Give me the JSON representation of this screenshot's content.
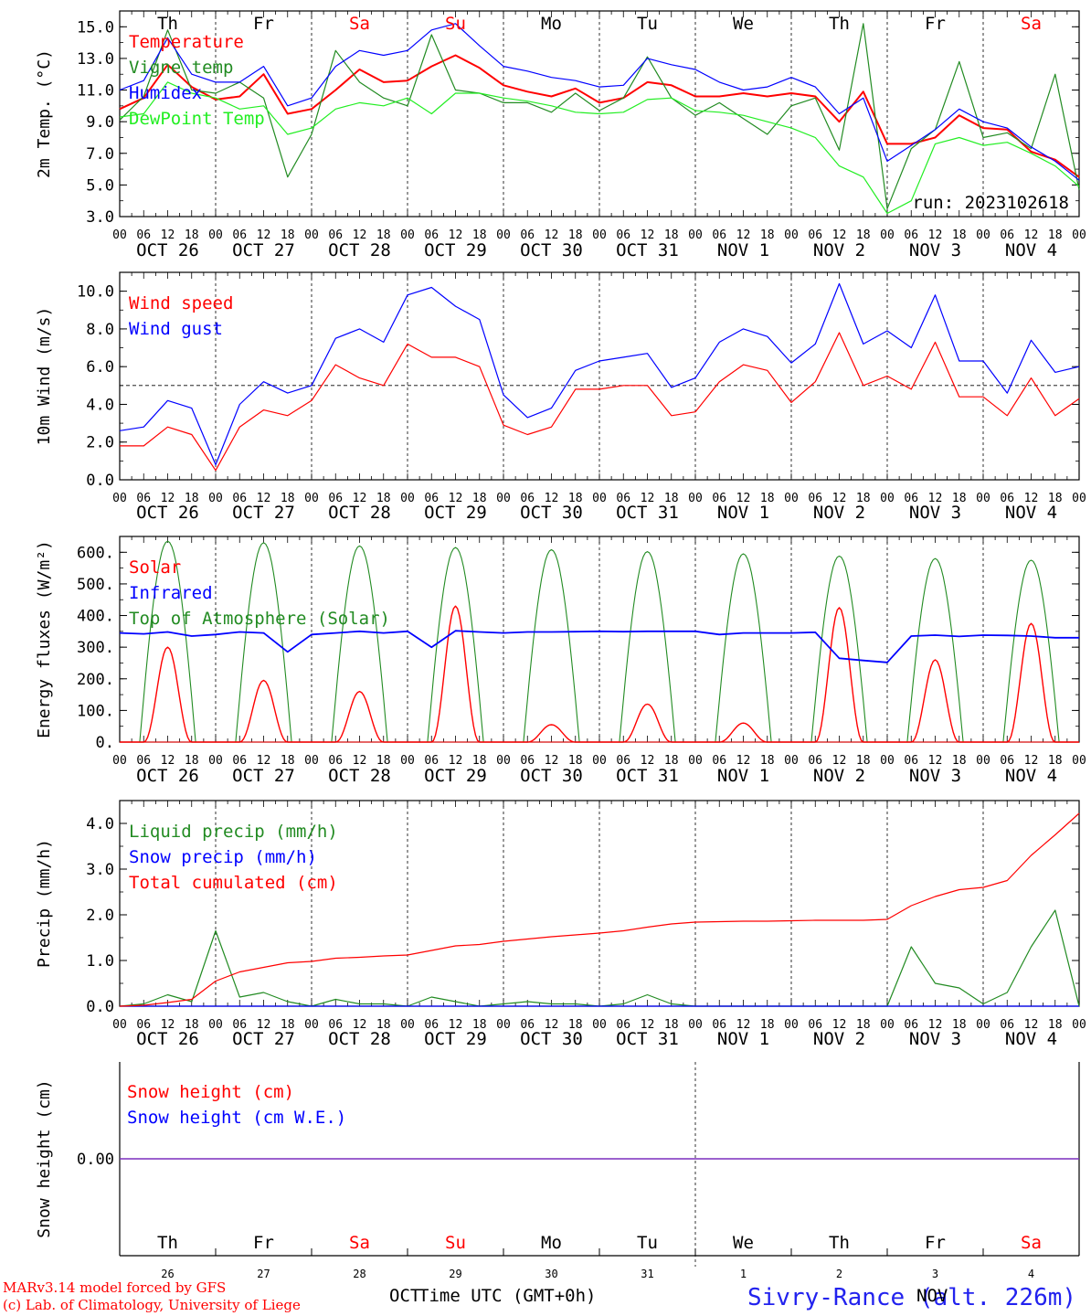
{
  "colors": {
    "red": "#ff0000",
    "blue": "#0000ff",
    "darkgreen": "#228b22",
    "lightgreen": "#22ee22",
    "purple": "#7b2fbe",
    "axis": "#000000"
  },
  "time": {
    "x_labels": [
      "00",
      "06",
      "12",
      "18"
    ],
    "days": [
      "OCT 26",
      "OCT 27",
      "OCT 28",
      "OCT 29",
      "OCT 30",
      "OCT 31",
      "NOV  1",
      "NOV  2",
      "NOV  3",
      "NOV  4"
    ],
    "weekdays": [
      "Th",
      "Fr",
      "Sa",
      "Su",
      "Mo",
      "Tu",
      "We",
      "Th",
      "Fr",
      "Sa"
    ],
    "weekday_colors": [
      "#000000",
      "#000000",
      "#ff0000",
      "#ff0000",
      "#000000",
      "#000000",
      "#000000",
      "#000000",
      "#000000",
      "#ff0000"
    ],
    "day_numbers": [
      "26",
      "27",
      "28",
      "29",
      "30",
      "31",
      "1",
      "2",
      "3",
      "4"
    ],
    "month_left": "OCT",
    "month_right": "NOV"
  },
  "footer": {
    "model": "MARv3.14 model forced by GFS",
    "credit": "(c) Lab. of Climatology, University of Liege",
    "xlabel": "Time UTC (GMT+0h)",
    "station": "Sivry-Rance (alt. 226m)"
  },
  "chart_data": [
    {
      "type": "line",
      "ylabel": "2m Temp. (°C)",
      "ylim": [
        3.0,
        16.0
      ],
      "yticks": [
        "3.0",
        "5.0",
        "7.0",
        "9.0",
        "11.0",
        "13.0",
        "15.0"
      ],
      "annotation": "run: 2023102618",
      "x_hours": [
        0,
        6,
        12,
        18,
        24,
        30,
        36,
        42,
        48,
        54,
        60,
        66,
        72,
        78,
        84,
        90,
        96,
        102,
        108,
        114,
        120,
        126,
        132,
        138,
        144,
        150,
        156,
        162,
        168,
        174,
        180,
        186,
        192,
        198,
        204,
        210,
        216,
        222,
        228,
        234,
        240
      ],
      "series": [
        {
          "name": "Temperature",
          "color": "#ff0000",
          "values": [
            9.8,
            10.5,
            12.6,
            11.2,
            10.4,
            10.6,
            12.0,
            9.5,
            9.8,
            11.0,
            12.3,
            11.5,
            11.6,
            12.5,
            13.2,
            12.4,
            11.3,
            10.9,
            10.6,
            11.1,
            10.2,
            10.5,
            11.5,
            11.3,
            10.6,
            10.6,
            10.8,
            10.6,
            10.8,
            10.6,
            9.0,
            10.9,
            7.6,
            7.6,
            8.0,
            9.4,
            8.6,
            8.5,
            7.1,
            6.6,
            5.5
          ]
        },
        {
          "name": "Vigne temp",
          "color": "#228b22",
          "values": [
            9.1,
            10.6,
            14.8,
            11.0,
            10.8,
            11.5,
            10.5,
            5.5,
            8.2,
            13.5,
            11.5,
            10.5,
            10.0,
            14.5,
            11.0,
            10.8,
            10.2,
            10.2,
            9.6,
            10.8,
            9.7,
            10.5,
            13.1,
            10.5,
            9.4,
            10.2,
            9.2,
            8.2,
            10.0,
            10.5,
            7.2,
            15.2,
            3.5,
            7.3,
            8.5,
            12.8,
            8.0,
            8.3,
            7.3,
            12.0,
            4.7
          ]
        },
        {
          "name": "Humidex",
          "color": "#0000ff",
          "values": [
            11.0,
            11.6,
            14.3,
            12.0,
            11.5,
            11.5,
            12.5,
            10.0,
            10.5,
            12.5,
            13.5,
            13.2,
            13.5,
            14.8,
            15.2,
            13.8,
            12.5,
            12.2,
            11.8,
            11.6,
            11.2,
            11.3,
            13.0,
            12.6,
            12.3,
            11.5,
            11.0,
            11.2,
            11.8,
            11.2,
            9.5,
            10.5,
            6.5,
            7.5,
            8.5,
            9.8,
            9.0,
            8.6,
            7.4,
            6.5,
            5.3
          ]
        },
        {
          "name": "DewPoint Temp",
          "color": "#22ee22",
          "values": [
            9.3,
            9.5,
            11.5,
            10.8,
            10.5,
            9.8,
            10.0,
            8.2,
            8.6,
            9.8,
            10.2,
            10.0,
            10.5,
            9.5,
            10.8,
            10.8,
            10.5,
            10.3,
            10.0,
            9.6,
            9.5,
            9.6,
            10.4,
            10.5,
            9.7,
            9.6,
            9.4,
            9.0,
            8.6,
            8.0,
            6.2,
            5.5,
            3.2,
            4.0,
            7.6,
            8.0,
            7.5,
            7.7,
            7.0,
            6.2,
            4.9
          ]
        }
      ]
    },
    {
      "type": "line",
      "ylabel": "10m Wind (m/s)",
      "ylim": [
        0.0,
        11.0
      ],
      "yticks": [
        "0.0",
        "2.0",
        "4.0",
        "6.0",
        "8.0",
        "10.0"
      ],
      "reference_line": 5.0,
      "x_hours": [
        0,
        6,
        12,
        18,
        24,
        30,
        36,
        42,
        48,
        54,
        60,
        66,
        72,
        78,
        84,
        90,
        96,
        102,
        108,
        114,
        120,
        126,
        132,
        138,
        144,
        150,
        156,
        162,
        168,
        174,
        180,
        186,
        192,
        198,
        204,
        210,
        216,
        222,
        228,
        234,
        240
      ],
      "series": [
        {
          "name": "Wind speed",
          "color": "#ff0000",
          "values": [
            1.8,
            1.8,
            2.8,
            2.4,
            0.5,
            2.8,
            3.7,
            3.4,
            4.2,
            6.1,
            5.4,
            5.0,
            7.2,
            6.5,
            6.5,
            6.0,
            2.9,
            2.4,
            2.8,
            4.8,
            4.8,
            5.0,
            5.0,
            3.4,
            3.6,
            5.2,
            6.1,
            5.8,
            4.1,
            5.2,
            7.8,
            5.0,
            5.5,
            4.8,
            7.3,
            4.4,
            4.4,
            3.4,
            5.4,
            3.4,
            4.3
          ]
        },
        {
          "name": "Wind gust",
          "color": "#0000ff",
          "values": [
            2.6,
            2.8,
            4.2,
            3.8,
            0.8,
            4.0,
            5.2,
            4.6,
            5.0,
            7.5,
            8.0,
            7.3,
            9.8,
            10.2,
            9.2,
            8.5,
            4.5,
            3.3,
            3.8,
            5.8,
            6.3,
            6.5,
            6.7,
            4.9,
            5.4,
            7.3,
            8.0,
            7.6,
            6.2,
            7.2,
            10.4,
            7.2,
            7.9,
            7.0,
            9.8,
            6.3,
            6.3,
            4.6,
            7.4,
            5.7,
            6.0
          ]
        }
      ]
    },
    {
      "type": "line",
      "ylabel": "Energy fluxes (W/m²)",
      "ylim": [
        0,
        650
      ],
      "yticks": [
        "0.",
        "100.",
        "200.",
        "300.",
        "400.",
        "500.",
        "600."
      ],
      "peaks_hour12": {
        "Solar": [
          300,
          195,
          160,
          430,
          55,
          120,
          60,
          425,
          260,
          375
        ],
        "Top of Atmosphere (Solar)": [
          635,
          630,
          620,
          615,
          608,
          602,
          595,
          588,
          580,
          575
        ]
      },
      "series": [
        {
          "name": "Solar",
          "color": "#ff0000"
        },
        {
          "name": "Infrared",
          "color": "#0000ff",
          "x_hours": [
            0,
            6,
            12,
            18,
            24,
            30,
            36,
            42,
            48,
            54,
            60,
            66,
            72,
            78,
            84,
            90,
            96,
            102,
            108,
            114,
            120,
            126,
            132,
            138,
            144,
            150,
            156,
            162,
            168,
            174,
            180,
            186,
            192,
            198,
            204,
            210,
            216,
            222,
            228,
            234,
            240
          ],
          "values": [
            345,
            342,
            348,
            335,
            340,
            348,
            345,
            285,
            340,
            345,
            350,
            345,
            350,
            300,
            352,
            348,
            345,
            348,
            348,
            349,
            350,
            349,
            350,
            350,
            350,
            340,
            345,
            345,
            345,
            347,
            265,
            258,
            252,
            335,
            338,
            334,
            338,
            337,
            335,
            330,
            330
          ]
        },
        {
          "name": "Top of Atmosphere (Solar)",
          "color": "#228b22"
        }
      ]
    },
    {
      "type": "line",
      "ylabel": "Precip (mm/h)",
      "ylim": [
        0.0,
        4.5
      ],
      "yticks": [
        "0.0",
        "1.0",
        "2.0",
        "3.0",
        "4.0"
      ],
      "x_hours": [
        0,
        6,
        12,
        18,
        24,
        30,
        36,
        42,
        48,
        54,
        60,
        66,
        72,
        78,
        84,
        90,
        96,
        102,
        108,
        114,
        120,
        126,
        132,
        138,
        144,
        150,
        156,
        162,
        168,
        174,
        180,
        186,
        192,
        198,
        204,
        210,
        216,
        222,
        228,
        234,
        240
      ],
      "series": [
        {
          "name": "Liquid precip (mm/h)",
          "color": "#228b22",
          "values": [
            0.0,
            0.05,
            0.25,
            0.1,
            1.65,
            0.2,
            0.3,
            0.1,
            0.0,
            0.15,
            0.05,
            0.05,
            0.0,
            0.2,
            0.1,
            0.0,
            0.05,
            0.1,
            0.05,
            0.05,
            0.0,
            0.05,
            0.25,
            0.05,
            0.0,
            0.0,
            0.0,
            0.0,
            0.0,
            0.0,
            0.0,
            0.0,
            0.0,
            1.3,
            0.5,
            0.4,
            0.05,
            0.3,
            1.3,
            2.1,
            0.0
          ]
        },
        {
          "name": "Snow precip (mm/h)",
          "color": "#0000ff",
          "values": [
            0.0,
            0.0,
            0.0,
            0.0,
            0.0,
            0.0,
            0.0,
            0.0,
            0.0,
            0.0,
            0.0,
            0.0,
            0.0,
            0.0,
            0.0,
            0.0,
            0.0,
            0.0,
            0.0,
            0.0,
            0.0,
            0.0,
            0.0,
            0.0,
            0.0,
            0.0,
            0.0,
            0.0,
            0.0,
            0.0,
            0.0,
            0.0,
            0.0,
            0.0,
            0.0,
            0.0,
            0.0,
            0.0,
            0.0,
            0.0,
            0.0
          ]
        },
        {
          "name": "Total cumulated (cm)",
          "color": "#ff0000",
          "values": [
            0.0,
            0.02,
            0.08,
            0.15,
            0.55,
            0.75,
            0.85,
            0.95,
            0.98,
            1.05,
            1.07,
            1.1,
            1.12,
            1.22,
            1.32,
            1.35,
            1.42,
            1.47,
            1.52,
            1.56,
            1.6,
            1.65,
            1.73,
            1.8,
            1.84,
            1.85,
            1.86,
            1.86,
            1.87,
            1.88,
            1.88,
            1.88,
            1.9,
            2.2,
            2.4,
            2.55,
            2.6,
            2.75,
            3.3,
            3.75,
            4.22
          ]
        }
      ]
    },
    {
      "type": "line",
      "ylabel": "Snow height (cm)",
      "ylim": [
        -1.0,
        1.0
      ],
      "yticks": [
        "0.00"
      ],
      "x_hours": [
        0,
        240
      ],
      "series": [
        {
          "name": "Snow height (cm)",
          "color": "#ff0000",
          "values": [
            0.0,
            0.0
          ]
        },
        {
          "name": "Snow height (cm W.E.)",
          "color": "#0000ff",
          "values": [
            0.0,
            0.0
          ]
        }
      ]
    }
  ]
}
